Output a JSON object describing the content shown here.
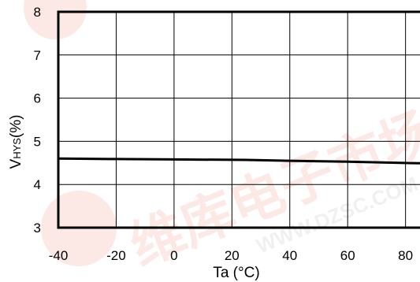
{
  "chart_data": {
    "type": "line",
    "title": "",
    "xlabel": "Ta (°C)",
    "ylabel": {
      "main": "V",
      "sub": "HYS",
      "unit": "(%)"
    },
    "xlim": [
      -40,
      85
    ],
    "ylim": [
      3,
      8
    ],
    "x_ticks": [
      -40,
      -20,
      0,
      20,
      40,
      60,
      80
    ],
    "y_ticks": [
      3,
      4,
      5,
      6,
      7,
      8
    ],
    "x_grid": [
      -40,
      -20,
      0,
      20,
      40,
      60,
      80
    ],
    "grid": true,
    "series": [
      {
        "x": [
          -40,
          -20,
          0,
          25,
          40,
          60,
          85
        ],
        "y": [
          4.6,
          4.59,
          4.58,
          4.57,
          4.55,
          4.53,
          4.49
        ]
      }
    ]
  },
  "watermark": {
    "text": "WWW.DZSC.COM",
    "cn": "维库电子市场网",
    "color": "#e8503a"
  }
}
